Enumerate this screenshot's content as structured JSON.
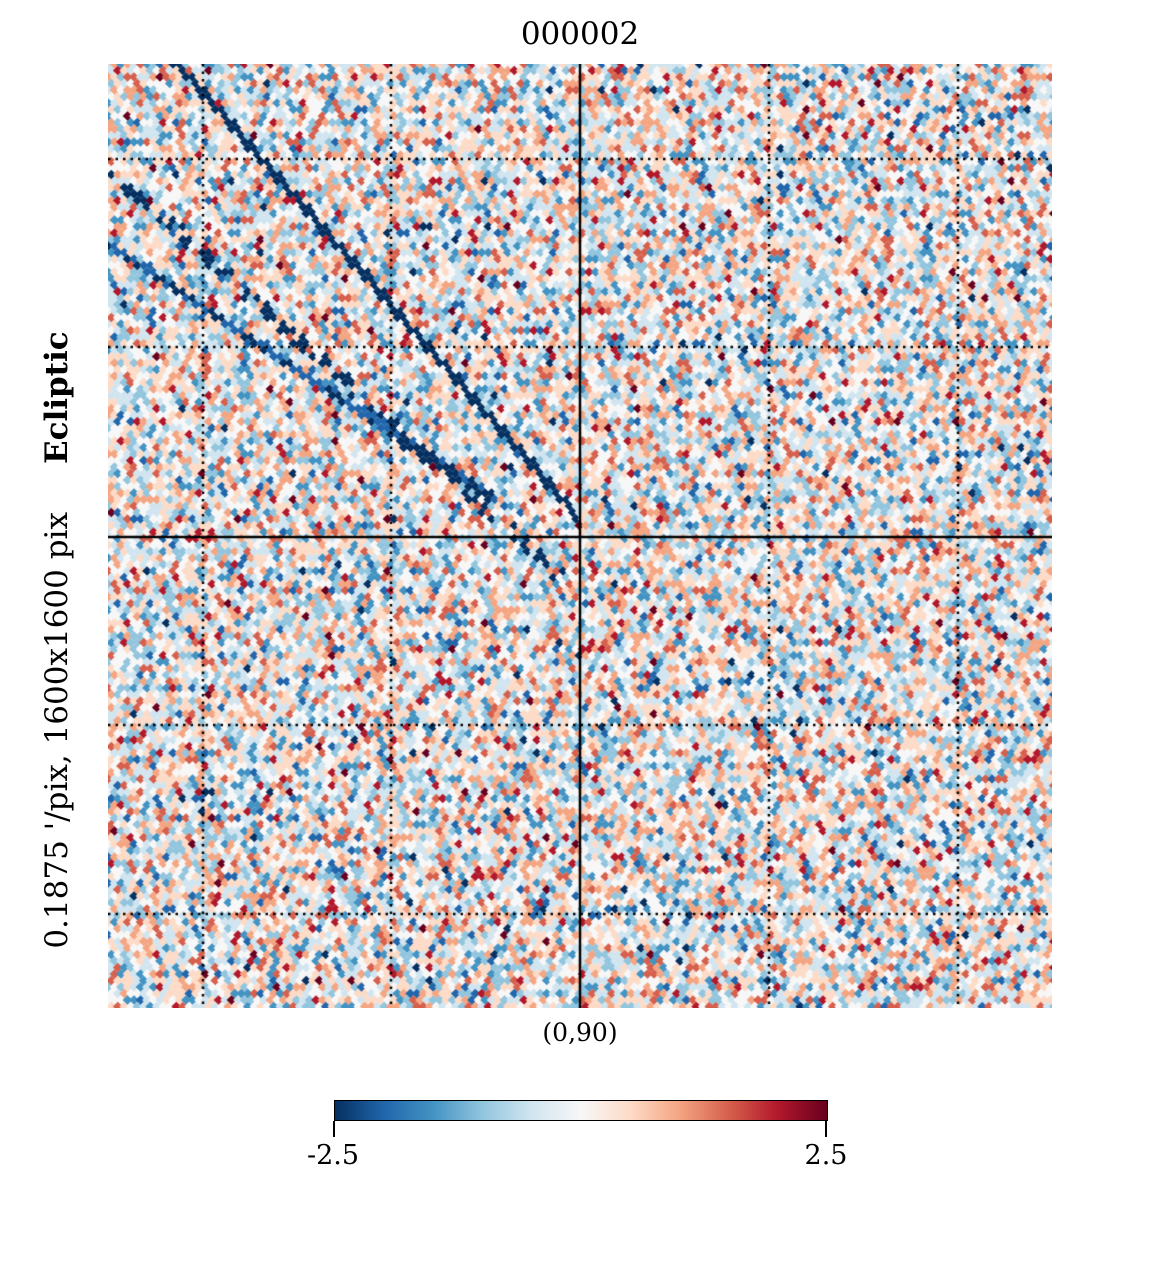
{
  "chart_data": {
    "type": "heatmap",
    "title": "000002",
    "xlabel": "(0,90)",
    "ylabel_bold": "Ecliptic",
    "ylabel": "0.1875 '/pix,   1600x1600 pix",
    "colormap": [
      "#053061",
      "#2166ac",
      "#4393c3",
      "#92c5de",
      "#d1e5f0",
      "#f7f7f7",
      "#fddbc7",
      "#f4a582",
      "#d6604d",
      "#b2182b",
      "#67001f"
    ],
    "colorbar": {
      "min": -2.5,
      "max": 2.5,
      "min_label": "-2.5",
      "max_label": "2.5"
    },
    "grid": "dotted graticule",
    "values": "noise field in range [-2.5, 2.5] with diagonal negative streaks in upper-left quadrant"
  }
}
